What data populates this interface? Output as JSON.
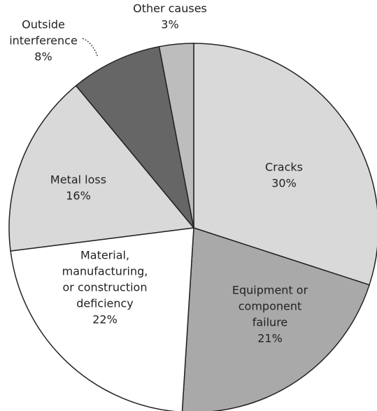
{
  "chart_data": {
    "type": "pie",
    "categories": [
      [
        "Cracks"
      ],
      [
        "Equipment or",
        "component",
        "failure"
      ],
      [
        "Material,",
        "manufacturing,",
        "or construction",
        "deficiency"
      ],
      [
        "Metal loss"
      ],
      [
        "Outside",
        "interference"
      ],
      [
        "Other causes"
      ]
    ],
    "values": [
      30,
      21,
      22,
      16,
      8,
      3
    ],
    "value_labels": [
      "30%",
      "21%",
      "22%",
      "16%",
      "8%",
      "3%"
    ],
    "colors": [
      "#d9d9d9",
      "#a9a9a9",
      "#ffffff",
      "#d9d9d9",
      "#666666",
      "#bdbdbd"
    ]
  }
}
